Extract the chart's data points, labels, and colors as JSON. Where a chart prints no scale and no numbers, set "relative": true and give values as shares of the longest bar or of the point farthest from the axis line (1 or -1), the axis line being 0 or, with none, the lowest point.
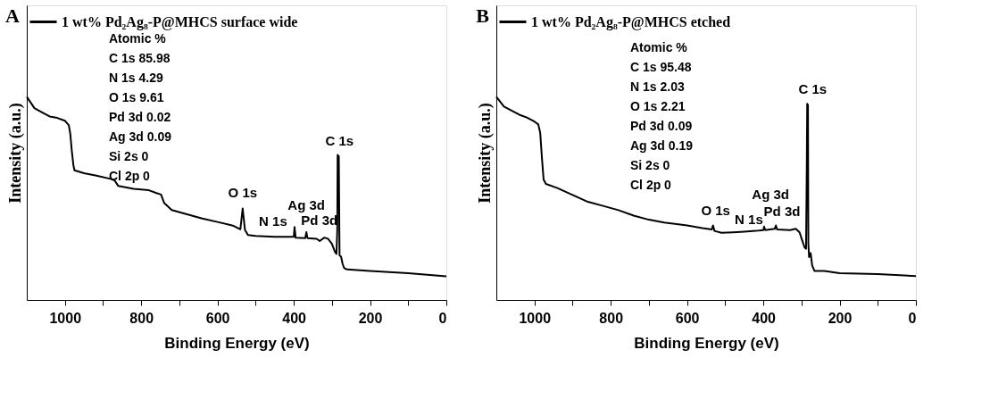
{
  "chart_data": [
    {
      "type": "line",
      "title": "A",
      "xlabel": "Binding Energy (eV)",
      "ylabel": "Intensity (a.u.)",
      "relative": true,
      "tick_labels": "x",
      "legend": "top left",
      "grid": false,
      "xlim": [
        1100,
        0
      ],
      "xticks": [
        1000,
        {
          "value": 900,
          "label": null
        },
        800,
        {
          "value": 700,
          "label": null
        },
        600,
        {
          "value": 500,
          "label": null
        },
        400,
        {
          "value": 300,
          "label": null
        },
        200,
        {
          "value": 100,
          "label": null
        },
        0
      ],
      "series": [
        {
          "name": "1 wt% Pd₂Ag₈-P@MHCS  surface wide",
          "color": "#000000",
          "x": [
            1100,
            1080,
            1060,
            1040,
            1020,
            1000,
            990,
            986,
            982,
            978,
            975,
            950,
            920,
            880,
            870,
            860,
            820,
            780,
            760,
            748,
            740,
            720,
            680,
            640,
            600,
            560,
            540,
            534,
            528,
            520,
            500,
            450,
            400,
            398,
            395,
            370,
            367,
            364,
            340,
            332,
            320,
            310,
            300,
            292,
            288,
            286,
            285,
            282,
            280,
            276,
            272,
            268,
            260,
            200,
            100,
            0
          ],
          "values": [
            1.0,
            0.944,
            0.923,
            0.903,
            0.896,
            0.882,
            0.861,
            0.819,
            0.735,
            0.666,
            0.638,
            0.624,
            0.613,
            0.596,
            0.589,
            0.561,
            0.547,
            0.54,
            0.526,
            0.519,
            0.478,
            0.443,
            0.422,
            0.401,
            0.384,
            0.366,
            0.348,
            0.45,
            0.345,
            0.32,
            0.315,
            0.311,
            0.311,
            0.359,
            0.306,
            0.304,
            0.334,
            0.304,
            0.301,
            0.29,
            0.307,
            0.301,
            0.276,
            0.237,
            0.227,
            0.345,
            0.714,
            0.707,
            0.22,
            0.213,
            0.178,
            0.157,
            0.15,
            0.143,
            0.132,
            0.116
          ]
        }
      ],
      "annotations": [
        "Atomic %",
        "C 1s   85.98",
        "N 1s   4.29",
        "O 1s   9.61",
        "Pd 3d 0.02",
        "Ag 3d 0.09",
        "Si 2s   0",
        "Cl 2p 0",
        {
          "text": "C 1s",
          "x": 285,
          "y": 0.714
        },
        {
          "text": "O 1s",
          "x": 534,
          "y": 0.45
        },
        {
          "text": "N 1s",
          "x": 398,
          "y": 0.359
        },
        {
          "text": "Ag 3d",
          "x": 367,
          "y": 0.334
        },
        {
          "text": "Pd 3d",
          "x": 340,
          "y": 0.301
        }
      ]
    },
    {
      "type": "line",
      "title": "B",
      "xlabel": "Binding Energy (eV)",
      "ylabel": "Intensity (a.u.)",
      "relative": true,
      "tick_labels": "x",
      "legend": "top left",
      "grid": false,
      "xlim": [
        1100,
        0
      ],
      "xticks": [
        1000,
        {
          "value": 900,
          "label": null
        },
        800,
        {
          "value": 700,
          "label": null
        },
        600,
        {
          "value": 500,
          "label": null
        },
        400,
        {
          "value": 300,
          "label": null
        },
        200,
        {
          "value": 100,
          "label": null
        },
        0
      ],
      "series": [
        {
          "name": "1 wt% Pd₂Ag₈-P@MHCS  etched",
          "color": "#000000",
          "x": [
            1100,
            1080,
            1060,
            1040,
            1020,
            1000,
            990,
            985,
            980,
            976,
            970,
            940,
            900,
            860,
            820,
            780,
            740,
            700,
            660,
            600,
            560,
            535,
            532,
            528,
            510,
            480,
            450,
            420,
            400,
            398,
            395,
            370,
            367,
            364,
            330,
            315,
            305,
            298,
            292,
            288,
            286,
            285,
            283,
            282,
            280,
            276,
            272,
            266,
            240,
            200,
            100,
            0
          ],
          "values": [
            1.0,
            0.952,
            0.932,
            0.912,
            0.898,
            0.878,
            0.864,
            0.823,
            0.687,
            0.592,
            0.571,
            0.551,
            0.517,
            0.483,
            0.463,
            0.442,
            0.415,
            0.395,
            0.381,
            0.367,
            0.354,
            0.347,
            0.367,
            0.34,
            0.331,
            0.333,
            0.336,
            0.34,
            0.344,
            0.361,
            0.344,
            0.35,
            0.367,
            0.347,
            0.344,
            0.35,
            0.333,
            0.293,
            0.259,
            0.252,
            0.673,
            0.966,
            0.959,
            0.278,
            0.211,
            0.231,
            0.17,
            0.143,
            0.143,
            0.132,
            0.127,
            0.118
          ]
        }
      ],
      "annotations": [
        "Atomic %",
        "C 1s   95.48",
        "N 1s   2.03",
        "O 1s   2.21",
        "Pd 3d 0.09",
        "Ag 3d 0.19",
        "Si 2s   0",
        "Cl 2p  0",
        {
          "text": "C 1s",
          "x": 285,
          "y": 0.966
        },
        {
          "text": "O 1s",
          "x": 532,
          "y": 0.367
        },
        {
          "text": "N 1s",
          "x": 398,
          "y": 0.361
        },
        {
          "text": "Ag 3d",
          "x": 367,
          "y": 0.367
        },
        {
          "text": "Pd 3d",
          "x": 330,
          "y": 0.344
        }
      ]
    }
  ]
}
